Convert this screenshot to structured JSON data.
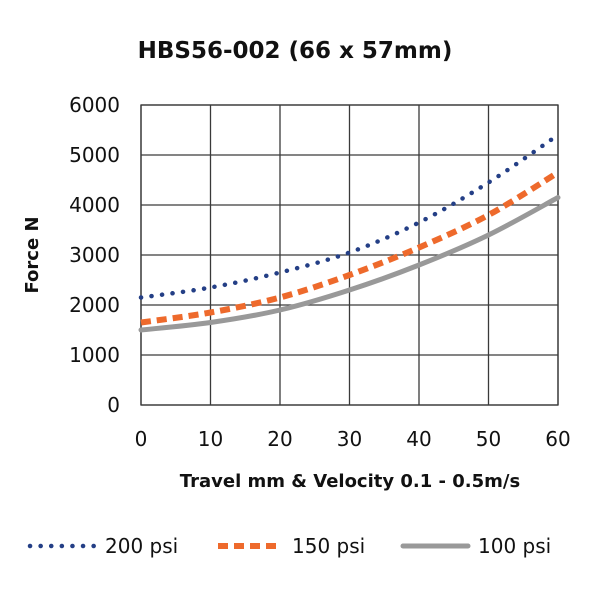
{
  "chart_data": {
    "type": "line",
    "title": "HBS56-002 (66 x 57mm)",
    "xlabel": "Travel mm & Velocity 0.1 - 0.5m/s",
    "ylabel": "Force N",
    "xlim": [
      0,
      60
    ],
    "ylim": [
      0,
      6000
    ],
    "x_ticks": [
      "0",
      "10",
      "20",
      "30",
      "40",
      "50",
      "60"
    ],
    "y_ticks": [
      "0",
      "1000",
      "2000",
      "3000",
      "4000",
      "5000",
      "6000"
    ],
    "grid": true,
    "legend_position": "bottom",
    "x": [
      0,
      10,
      20,
      30,
      40,
      50,
      60
    ],
    "series": [
      {
        "name": "200 psi",
        "style": "dotted",
        "color": "#243f86",
        "values": [
          2150,
          2350,
          2650,
          3050,
          3650,
          4450,
          5400
        ]
      },
      {
        "name": "150 psi",
        "style": "dashed",
        "color": "#ee6a2c",
        "values": [
          1650,
          1850,
          2150,
          2600,
          3150,
          3800,
          4650
        ]
      },
      {
        "name": "100 psi",
        "style": "solid",
        "color": "#999999",
        "values": [
          1500,
          1650,
          1900,
          2300,
          2800,
          3400,
          4150
        ]
      }
    ]
  }
}
